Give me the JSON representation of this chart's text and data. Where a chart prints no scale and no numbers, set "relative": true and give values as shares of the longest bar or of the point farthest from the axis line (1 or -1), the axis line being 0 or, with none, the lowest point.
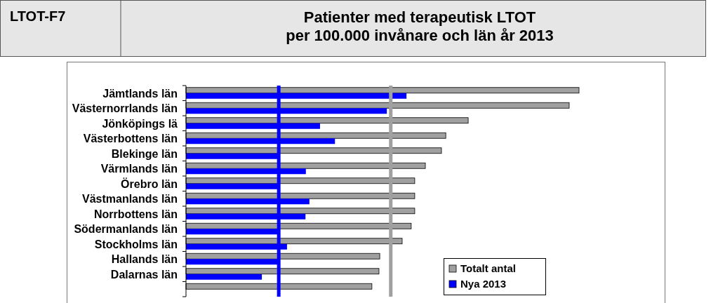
{
  "chart_data": {
    "type": "bar",
    "orientation": "horizontal",
    "relative": true,
    "title": "Patienter med terapeutisk LTOT\nper 100.000 invånare och län år 2013",
    "annotations": [
      "LTOT-F7"
    ],
    "categories": [
      "Jämtlands län",
      "Västernorrlands län",
      "Jönköpings lä",
      "Västerbottens län",
      "Blekinge län",
      "Värmlands län",
      "Örebro län",
      "Västmanlands län",
      "Norrbottens län",
      "Södermanlands län",
      "Stockholms län",
      "Hallands län",
      "Dalarnas län",
      null
    ],
    "series": [
      {
        "name": "Totalt antal",
        "color": "#a0a0a0",
        "values": [
          1,
          0.975,
          0.718,
          0.661,
          0.65,
          0.609,
          0.582,
          0.582,
          0.582,
          0.573,
          0.55,
          0.493,
          0.491,
          0.473
        ]
      },
      {
        "name": "Nya 2013",
        "color": "#0000ff",
        "values": [
          0.561,
          0.511,
          0.341,
          0.379,
          0.236,
          0.305,
          0.236,
          0.314,
          0.304,
          0.236,
          0.257,
          0.236,
          0.193,
          null
        ]
      }
    ],
    "ref_lines": [
      {
        "axis": "x",
        "value": 0.236,
        "color": "#0000ff"
      },
      {
        "axis": "x",
        "value": 0.521,
        "color": "#a0a0a0"
      }
    ],
    "legend": "bottom right"
  }
}
